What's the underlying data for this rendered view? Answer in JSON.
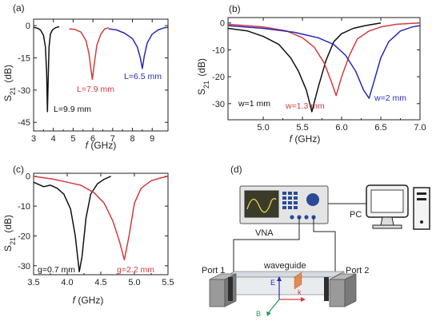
{
  "colors": {
    "black": "#111111",
    "red": "#d23c3c",
    "blue": "#2a2ab8"
  },
  "chart_data": [
    {
      "panel": "(a)",
      "type": "line",
      "xlabel": "f (GHz)",
      "ylabel": "S21 (dB)",
      "xlim": [
        3,
        9.8
      ],
      "ylim": [
        -49,
        3
      ],
      "xticks": [
        3,
        4,
        5,
        6,
        7,
        8,
        9
      ],
      "yticks": [
        0,
        -15,
        -30,
        -45
      ],
      "series": [
        {
          "name": "L=9.9 mm",
          "color": "black",
          "x": [
            3.0,
            3.2,
            3.35,
            3.5,
            3.6,
            3.66,
            3.7,
            3.74,
            3.78,
            3.85,
            3.95,
            4.1,
            4.3
          ],
          "y": [
            -0.8,
            -1.2,
            -2.0,
            -4.5,
            -10,
            -22,
            -40,
            -24,
            -10,
            -4,
            -2,
            -1,
            -0.5
          ]
        },
        {
          "name": "L=7.9 mm",
          "color": "red",
          "x": [
            4.8,
            5.1,
            5.4,
            5.65,
            5.8,
            5.9,
            5.97,
            6.05,
            6.2,
            6.4,
            6.6,
            6.8
          ],
          "y": [
            -1.5,
            -1.8,
            -3,
            -7,
            -13,
            -20,
            -25,
            -19,
            -9,
            -4,
            -1.5,
            -1
          ]
        },
        {
          "name": "L=6.5 mm",
          "color": "blue",
          "x": [
            6.8,
            7.2,
            7.6,
            8.0,
            8.25,
            8.4,
            8.5,
            8.6,
            8.75,
            9.0,
            9.3,
            9.6,
            9.8
          ],
          "y": [
            -1.5,
            -2,
            -3.5,
            -6,
            -10,
            -15,
            -20,
            -14,
            -8,
            -4,
            -2,
            -1,
            -0.8
          ]
        }
      ],
      "annotations": [
        "L=9.9 mm",
        "L=7.9 mm",
        "L=6.5 mm"
      ]
    },
    {
      "panel": "(b)",
      "type": "line",
      "xlabel": "f (GHz)",
      "ylabel": "S21 (dB)",
      "xlim": [
        4.55,
        7.0
      ],
      "ylim": [
        -36,
        2
      ],
      "xticks": [
        5.0,
        5.5,
        6.0,
        6.5,
        7.0
      ],
      "yticks": [
        0,
        -10,
        -20,
        -30
      ],
      "series": [
        {
          "name": "w=1 mm",
          "color": "black",
          "x": [
            4.55,
            4.8,
            5.0,
            5.2,
            5.35,
            5.45,
            5.55,
            5.62,
            5.7,
            5.8,
            5.9,
            6.0,
            6.15,
            6.3,
            6.5
          ],
          "y": [
            -2,
            -3,
            -5,
            -8,
            -13,
            -18,
            -25,
            -33,
            -24,
            -14,
            -7,
            -4,
            -2,
            -1,
            0
          ]
        },
        {
          "name": "w=1.3 mm",
          "color": "red",
          "x": [
            4.55,
            5.0,
            5.3,
            5.5,
            5.65,
            5.78,
            5.87,
            5.93,
            6.0,
            6.1,
            6.2,
            6.35,
            6.5,
            6.7,
            7.0
          ],
          "y": [
            -0.5,
            -1.5,
            -3,
            -5.5,
            -9,
            -15,
            -22,
            -27,
            -20,
            -12,
            -6,
            -3,
            -1.5,
            -0.5,
            0
          ]
        },
        {
          "name": "w=2 mm",
          "color": "blue",
          "x": [
            4.55,
            5.0,
            5.4,
            5.7,
            5.9,
            6.05,
            6.18,
            6.28,
            6.35,
            6.42,
            6.5,
            6.6,
            6.75,
            6.9,
            7.0
          ],
          "y": [
            -1,
            -2,
            -3.5,
            -5.5,
            -8,
            -12,
            -18,
            -25,
            -28,
            -21,
            -13,
            -7,
            -3,
            -1.5,
            -1
          ]
        }
      ],
      "annotations": [
        "w=1 mm",
        "w=1.3 mm",
        "w=2 mm"
      ]
    },
    {
      "panel": "(c)",
      "type": "line",
      "xlabel": "f (GHz)",
      "ylabel": "S21 (dB)",
      "xlim": [
        3.5,
        5.5
      ],
      "ylim": [
        -33,
        1
      ],
      "xticks": [
        3.5,
        4.0,
        4.5,
        5.0,
        5.5
      ],
      "yticks": [
        0,
        -10,
        -20,
        -30
      ],
      "series": [
        {
          "name": "g=0.7 mm",
          "color": "black",
          "x": [
            3.5,
            3.65,
            3.75,
            3.85,
            3.95,
            4.05,
            4.12,
            4.18,
            4.22,
            4.28,
            4.35,
            4.45,
            4.55,
            4.65
          ],
          "y": [
            -2,
            -3.5,
            -3,
            -4,
            -6,
            -11,
            -20,
            -32,
            -27,
            -14,
            -6,
            -2.5,
            -1,
            0
          ]
        },
        {
          "name": "g=2.2 mm",
          "color": "red",
          "x": [
            3.5,
            3.8,
            4.0,
            4.2,
            4.4,
            4.55,
            4.68,
            4.78,
            4.85,
            4.92,
            5.0,
            5.1,
            5.25,
            5.4,
            5.5
          ],
          "y": [
            0,
            -1,
            -2,
            -3,
            -5.5,
            -9,
            -15,
            -22,
            -28,
            -20,
            -9,
            -4,
            -1.5,
            -0.5,
            0
          ]
        }
      ],
      "annotations": [
        "g=0.7 mm",
        "g=2.2 mm"
      ]
    }
  ],
  "diagram": {
    "panel": "(d)",
    "vna_label": "VNA",
    "pc_label": "PC",
    "port1_label": "Port 1",
    "port2_label": "Port 2",
    "waveguide_label": "waveguide",
    "e_label": "E",
    "k_label": "k",
    "b_label": "B"
  }
}
